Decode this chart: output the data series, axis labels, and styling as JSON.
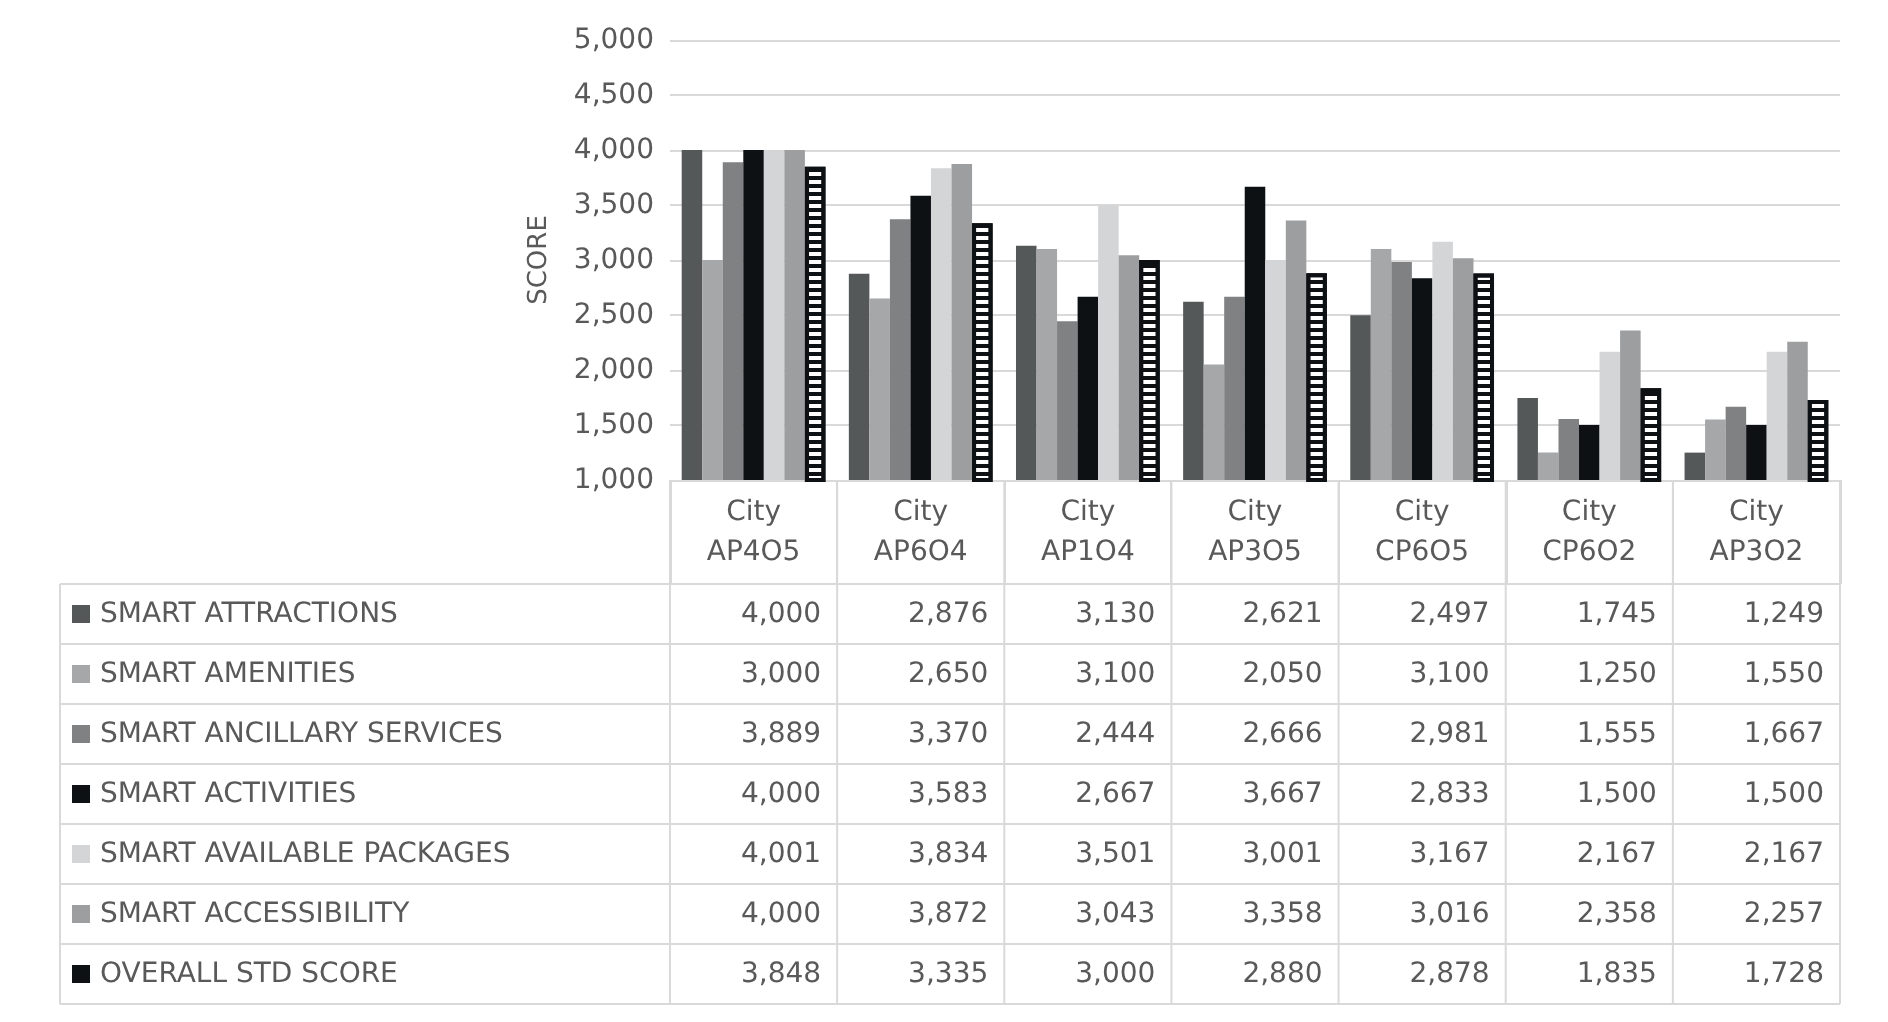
{
  "chart_data": {
    "type": "bar",
    "ylabel": "SCORE",
    "categories": [
      "City AP4O5",
      "City AP6O4",
      "City AP1O4",
      "City AP3O5",
      "City CP6O5",
      "City CP6O2",
      "City AP3O2"
    ],
    "series": [
      {
        "name": "SMART ATTRACTIONS",
        "color": "#555859",
        "values": [
          4000,
          2876,
          3130,
          2621,
          2497,
          1745,
          1249
        ],
        "value_labels": [
          "4,000",
          "2,876",
          "3,130",
          "2,621",
          "2,497",
          "1,745",
          "1,249"
        ]
      },
      {
        "name": "SMART AMENITIES",
        "color": "#a5a7a8",
        "values": [
          3000,
          2650,
          3100,
          2050,
          3100,
          1250,
          1550
        ],
        "value_labels": [
          "3,000",
          "2,650",
          "3,100",
          "2,050",
          "3,100",
          "1,250",
          "1,550"
        ]
      },
      {
        "name": "SMART ANCILLARY SERVICES",
        "color": "#7f8183",
        "values": [
          3889,
          3370,
          2444,
          2666,
          2981,
          1555,
          1667
        ],
        "value_labels": [
          "3,889",
          "3,370",
          "2,444",
          "2,666",
          "2,981",
          "1,555",
          "1,667"
        ]
      },
      {
        "name": "SMART ACTIVITIES",
        "color": "#0e1114",
        "values": [
          4000,
          3583,
          2667,
          3667,
          2833,
          1500,
          1500
        ],
        "value_labels": [
          "4,000",
          "3,583",
          "2,667",
          "3,667",
          "2,833",
          "1,500",
          "1,500"
        ]
      },
      {
        "name": "SMART AVAILABLE PACKAGES",
        "color": "#d4d5d6",
        "values": [
          4001,
          3834,
          3501,
          3001,
          3167,
          2167,
          2167
        ],
        "value_labels": [
          "4,001",
          "3,834",
          "3,501",
          "3,001",
          "3,167",
          "2,167",
          "2,167"
        ]
      },
      {
        "name": "SMART ACCESSIBILITY",
        "color": "#9c9ea0",
        "values": [
          4000,
          3872,
          3043,
          3358,
          3016,
          2358,
          2257
        ],
        "value_labels": [
          "4,000",
          "3,872",
          "3,043",
          "3,358",
          "3,016",
          "2,358",
          "2,257"
        ]
      },
      {
        "name": "OVERALL STD SCORE",
        "color": "#0e1114",
        "values": [
          3848,
          3335,
          3000,
          2880,
          2878,
          1835,
          1728
        ],
        "value_labels": [
          "3,848",
          "3,335",
          "3,000",
          "2,880",
          "2,878",
          "1,835",
          "1,728"
        ]
      }
    ],
    "ylim": [
      1000,
      5000
    ],
    "yticks": [
      {
        "value": 1000,
        "label": "1,000"
      },
      {
        "value": 1500,
        "label": "1,500"
      },
      {
        "value": 2000,
        "label": "2,000"
      },
      {
        "value": 2500,
        "label": "2,500"
      },
      {
        "value": 3000,
        "label": "3,000"
      },
      {
        "value": 3500,
        "label": "3,500"
      },
      {
        "value": 4000,
        "label": "4,000"
      },
      {
        "value": 4500,
        "label": "4,500"
      },
      {
        "value": 5000,
        "label": "5,000"
      }
    ],
    "grid": "y",
    "legend": "bottom"
  }
}
